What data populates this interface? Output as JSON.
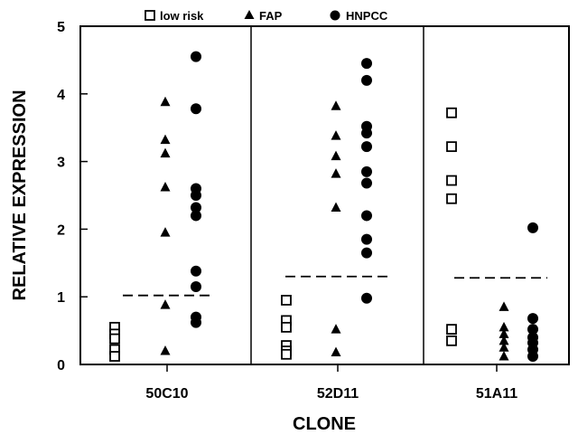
{
  "chart_data": {
    "type": "scatter",
    "xlabel": "CLONE",
    "ylabel": "RELATIVE EXPRESSION",
    "ylim": [
      0,
      5
    ],
    "yticks": [
      "0",
      "1",
      "2",
      "3",
      "4",
      "5"
    ],
    "categories": [
      "50C10",
      "52D11",
      "51A11"
    ],
    "grid": false,
    "legend_position": "top",
    "series": [
      {
        "name": "low risk",
        "marker": "open-square",
        "color": "#000000",
        "values": [
          [
            0.55,
            0.45,
            0.38,
            0.22,
            0.12
          ],
          [
            0.95,
            0.65,
            0.55,
            0.28,
            0.2,
            0.15
          ],
          [
            3.72,
            3.22,
            2.72,
            2.45,
            0.52,
            0.35
          ]
        ]
      },
      {
        "name": "FAP",
        "marker": "filled-triangle",
        "color": "#000000",
        "values": [
          [
            3.88,
            3.32,
            3.12,
            2.62,
            1.95,
            0.88,
            0.2
          ],
          [
            3.82,
            3.38,
            3.08,
            2.82,
            2.32,
            0.52,
            0.18
          ],
          [
            0.85,
            0.55,
            0.45,
            0.35,
            0.25,
            0.12
          ]
        ]
      },
      {
        "name": "HNPCC",
        "marker": "filled-circle",
        "color": "#000000",
        "values": [
          [
            4.55,
            3.78,
            2.6,
            2.5,
            2.32,
            2.2,
            1.38,
            1.15,
            0.7,
            0.62
          ],
          [
            4.45,
            4.2,
            3.52,
            3.42,
            3.22,
            2.85,
            2.68,
            2.2,
            1.85,
            1.65,
            0.98
          ],
          [
            2.02,
            0.68,
            0.52,
            0.4,
            0.32,
            0.22,
            0.12
          ]
        ]
      }
    ],
    "thresholds": [
      1.02,
      1.3,
      1.28
    ]
  }
}
